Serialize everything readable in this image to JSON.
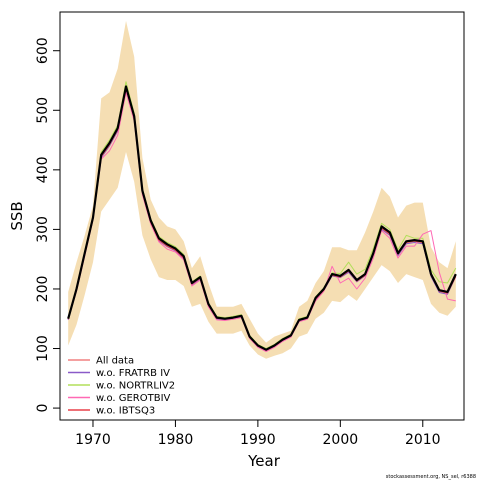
{
  "chart_data": {
    "type": "line",
    "xlabel": "Year",
    "ylabel": "SSB",
    "xlim": [
      1966,
      2015
    ],
    "ylim": [
      -20,
      665
    ],
    "x_ticks": [
      "1970",
      "1980",
      "1990",
      "2000",
      "2010"
    ],
    "y_ticks": [
      "0",
      "100",
      "200",
      "300",
      "400",
      "500",
      "600"
    ],
    "years": [
      1967,
      1968,
      1969,
      1970,
      1971,
      1972,
      1973,
      1974,
      1975,
      1976,
      1977,
      1978,
      1979,
      1980,
      1981,
      1982,
      1983,
      1984,
      1985,
      1986,
      1987,
      1988,
      1989,
      1990,
      1991,
      1992,
      1993,
      1994,
      1995,
      1996,
      1997,
      1998,
      1999,
      2000,
      2001,
      2002,
      2003,
      2004,
      2005,
      2006,
      2007,
      2008,
      2009,
      2010,
      2011,
      2012,
      2013,
      2014
    ],
    "confidence_band": {
      "color": "#f5deb3",
      "lower": [
        105,
        140,
        190,
        245,
        330,
        350,
        370,
        430,
        380,
        290,
        250,
        220,
        215,
        215,
        205,
        170,
        175,
        145,
        125,
        125,
        125,
        130,
        105,
        90,
        83,
        88,
        92,
        100,
        120,
        125,
        150,
        160,
        180,
        178,
        190,
        180,
        200,
        220,
        240,
        230,
        210,
        225,
        220,
        215,
        175,
        160,
        155,
        170
      ],
      "upper": [
        195,
        245,
        290,
        340,
        520,
        530,
        570,
        650,
        590,
        420,
        350,
        320,
        305,
        300,
        280,
        235,
        255,
        210,
        170,
        170,
        170,
        175,
        150,
        125,
        110,
        120,
        125,
        130,
        170,
        180,
        210,
        230,
        270,
        270,
        265,
        265,
        295,
        330,
        370,
        355,
        320,
        340,
        345,
        345,
        270,
        245,
        235,
        280
      ]
    },
    "series": [
      {
        "name": "",
        "color": "#000000",
        "width": 2.2,
        "values": [
          150,
          200,
          260,
          320,
          425,
          445,
          470,
          540,
          490,
          365,
          315,
          285,
          275,
          268,
          255,
          210,
          220,
          175,
          152,
          150,
          152,
          155,
          120,
          105,
          98,
          105,
          115,
          122,
          148,
          152,
          185,
          200,
          225,
          222,
          232,
          215,
          225,
          260,
          305,
          295,
          260,
          280,
          282,
          280,
          225,
          198,
          195,
          225
        ]
      },
      {
        "name": "All data",
        "color": "#f08080",
        "width": 1,
        "values": [
          149,
          199,
          258,
          318,
          423,
          443,
          468,
          538,
          488,
          363,
          313,
          283,
          273,
          266,
          253,
          209,
          219,
          174,
          151,
          149,
          151,
          154,
          119,
          104,
          97,
          104,
          114,
          121,
          147,
          151,
          184,
          199,
          224,
          221,
          231,
          214,
          224,
          259,
          304,
          294,
          259,
          279,
          281,
          279,
          224,
          197,
          194,
          224
        ]
      },
      {
        "name": "w.o. FRATRB IV",
        "color": "#8a5ac8",
        "width": 1,
        "values": [
          148,
          198,
          257,
          317,
          420,
          440,
          465,
          535,
          486,
          360,
          311,
          281,
          271,
          264,
          251,
          207,
          217,
          172,
          150,
          148,
          150,
          153,
          118,
          103,
          96,
          103,
          113,
          120,
          146,
          150,
          182,
          197,
          222,
          219,
          228,
          212,
          222,
          256,
          300,
          290,
          256,
          276,
          278,
          276,
          221,
          194,
          191,
          221
        ]
      },
      {
        "name": "w.o. NORTRLIV2",
        "color": "#b2df5a",
        "width": 1,
        "values": [
          152,
          202,
          263,
          323,
          430,
          450,
          475,
          548,
          495,
          368,
          318,
          288,
          278,
          271,
          258,
          212,
          222,
          177,
          154,
          152,
          154,
          157,
          122,
          107,
          100,
          107,
          117,
          124,
          150,
          154,
          187,
          202,
          227,
          226,
          245,
          225,
          233,
          268,
          310,
          300,
          266,
          290,
          285,
          285,
          232,
          212,
          210,
          235
        ]
      },
      {
        "name": "w.o. GEROTBIV",
        "color": "#ff69b4",
        "width": 1,
        "values": [
          149,
          196,
          255,
          316,
          418,
          432,
          458,
          530,
          482,
          358,
          309,
          279,
          267,
          262,
          249,
          205,
          215,
          170,
          148,
          147,
          149,
          152,
          117,
          102,
          95,
          102,
          112,
          119,
          145,
          149,
          180,
          196,
          238,
          210,
          218,
          200,
          218,
          252,
          298,
          285,
          252,
          272,
          272,
          292,
          298,
          228,
          183,
          180
        ]
      },
      {
        "name": "w.o. IBTSQ3",
        "color": "#e8414a",
        "width": 1,
        "values": [
          150,
          199,
          259,
          319,
          422,
          442,
          467,
          537,
          487,
          362,
          312,
          282,
          272,
          265,
          252,
          208,
          218,
          173,
          151,
          149,
          151,
          154,
          119,
          104,
          97,
          104,
          114,
          121,
          147,
          151,
          183,
          198,
          223,
          220,
          230,
          213,
          223,
          258,
          302,
          292,
          258,
          278,
          280,
          278,
          223,
          196,
          193,
          221
        ]
      }
    ],
    "legend": {
      "position": "bottom-left",
      "entries": [
        "All data",
        "w.o. FRATRB IV",
        "w.o. NORTRLIV2",
        "w.o. GEROTBIV",
        "w.o. IBTSQ3"
      ]
    },
    "grid": false
  },
  "credit": "stockassessment.org, NS_sel, r6388"
}
